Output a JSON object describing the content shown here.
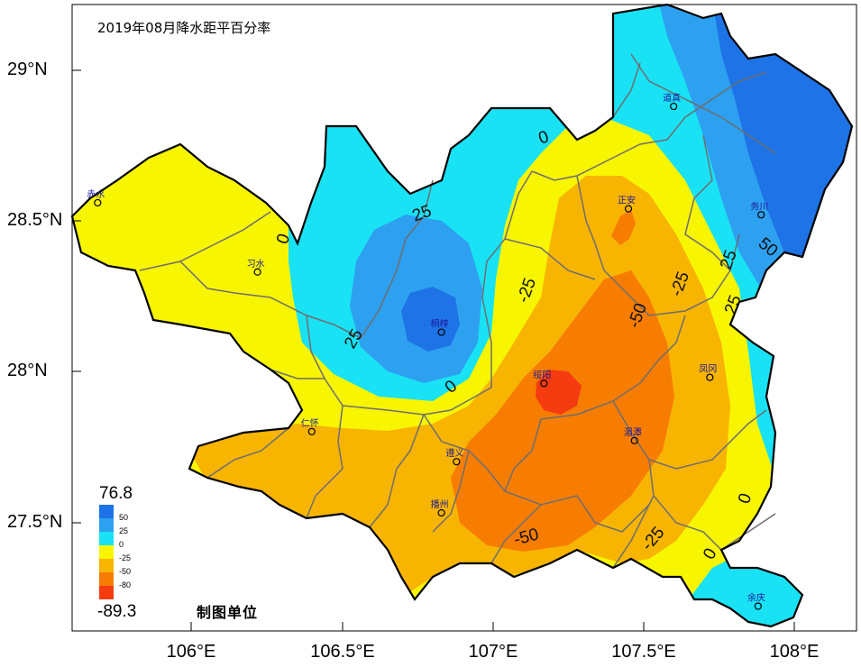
{
  "title": "2019年08月降水距平百分率",
  "axes": {
    "lat_ticks": [
      "29°N",
      "28.5°N",
      "28°N",
      "27.5°N"
    ],
    "lon_ticks": [
      "106°E",
      "106.5°E",
      "107°E",
      "107.5°E",
      "108°E"
    ]
  },
  "legend": {
    "max_label": "76.8",
    "min_label": "-89.3",
    "levels": [
      {
        "label": "50",
        "color": "#1e73e6"
      },
      {
        "label": "25",
        "color": "#2ea0f0"
      },
      {
        "label": "0",
        "color": "#19e2f5"
      },
      {
        "label": "-25",
        "color": "#f7f500"
      },
      {
        "label": "-50",
        "color": "#f7b400"
      },
      {
        "label": "-80",
        "color": "#f77d00"
      },
      {
        "label": "",
        "color": "#f53c10"
      }
    ]
  },
  "credit": "制图单位",
  "cities": [
    {
      "name": "赤水",
      "lon": 105.69,
      "lat": 28.56
    },
    {
      "name": "习水",
      "lon": 106.22,
      "lat": 28.33
    },
    {
      "name": "桐梓",
      "lon": 106.83,
      "lat": 28.13
    },
    {
      "name": "道真",
      "lon": 107.6,
      "lat": 28.88
    },
    {
      "name": "正安",
      "lon": 107.45,
      "lat": 28.54
    },
    {
      "name": "务川",
      "lon": 107.89,
      "lat": 28.52
    },
    {
      "name": "绥阳",
      "lon": 107.17,
      "lat": 27.96
    },
    {
      "name": "凤冈",
      "lon": 107.72,
      "lat": 27.98
    },
    {
      "name": "仁怀",
      "lon": 106.4,
      "lat": 27.8
    },
    {
      "name": "湄潭",
      "lon": 107.47,
      "lat": 27.77
    },
    {
      "name": "遵义",
      "lon": 106.88,
      "lat": 27.7
    },
    {
      "name": "播州",
      "lon": 106.83,
      "lat": 27.53
    },
    {
      "name": "余庆",
      "lon": 107.88,
      "lat": 27.22
    }
  ],
  "contour_labels": [
    "0",
    "25",
    "0",
    "25",
    "0",
    "-25",
    "-50",
    "-25",
    "25",
    "50",
    "25",
    "0",
    "-25",
    "0",
    "-50"
  ]
}
